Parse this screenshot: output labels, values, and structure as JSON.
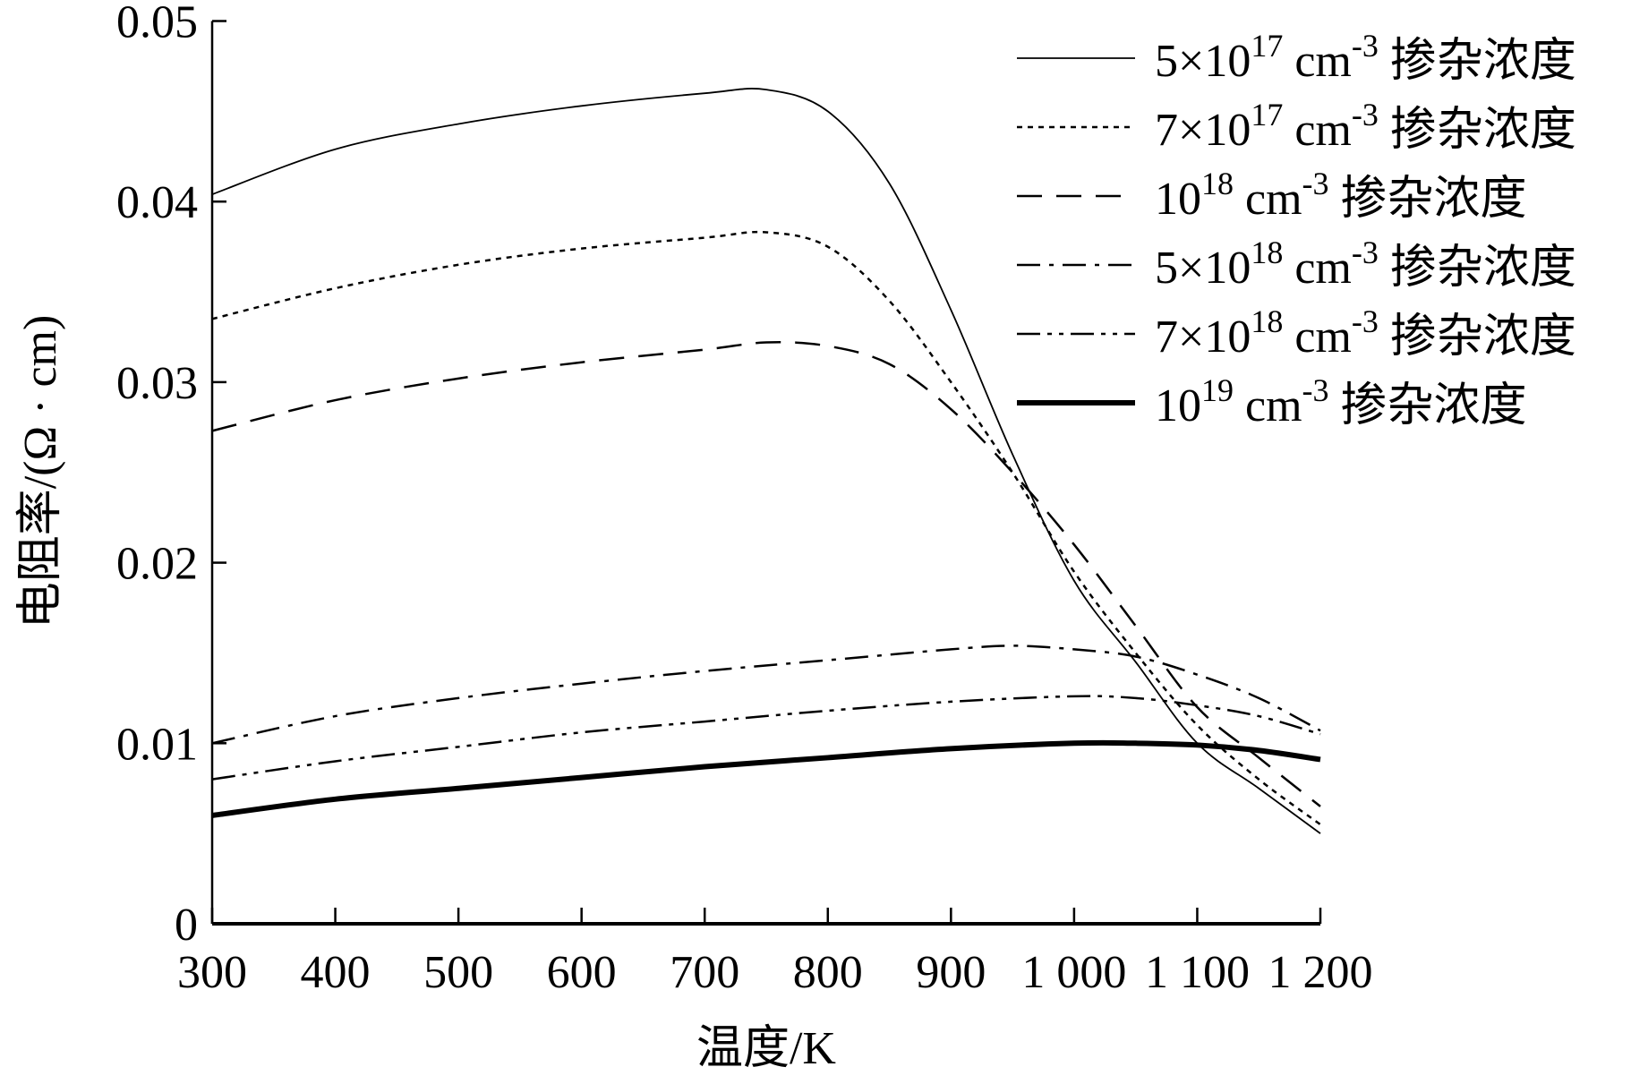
{
  "chart_data": {
    "type": "line",
    "title": "",
    "xlabel": "温度/K",
    "ylabel": "电阻率/(Ω · cm)",
    "xlim": [
      300,
      1200
    ],
    "ylim": [
      0,
      0.05
    ],
    "grid": false,
    "legend_position": "top-right",
    "xticks": [
      300,
      400,
      500,
      600,
      700,
      800,
      900,
      1000,
      1100,
      1200
    ],
    "xtick_labels": [
      "300",
      "400",
      "500",
      "600",
      "700",
      "800",
      "900",
      "1 000",
      "1 100",
      "1 200"
    ],
    "yticks": [
      0,
      0.01,
      0.02,
      0.03,
      0.04,
      0.05
    ],
    "ytick_labels": [
      "0",
      "0.01",
      "0.02",
      "0.03",
      "0.04",
      "0.05"
    ],
    "series": [
      {
        "name": "5×10^17 cm^-3 掺杂浓度",
        "label_base": "5×10",
        "label_exp": "17",
        "style": "solid",
        "x": [
          300,
          400,
          500,
          600,
          700,
          750,
          800,
          850,
          900,
          950,
          1000,
          1050,
          1100,
          1150,
          1200
        ],
        "y": [
          0.0404,
          0.0429,
          0.0443,
          0.0453,
          0.046,
          0.0462,
          0.045,
          0.041,
          0.034,
          0.026,
          0.019,
          0.0145,
          0.01,
          0.0075,
          0.005
        ]
      },
      {
        "name": "7×10^17 cm^-3 掺杂浓度",
        "label_base": "7×10",
        "label_exp": "17",
        "style": "dotted",
        "x": [
          300,
          400,
          500,
          600,
          700,
          750,
          800,
          850,
          900,
          950,
          1000,
          1050,
          1100,
          1150,
          1200
        ],
        "y": [
          0.0335,
          0.0352,
          0.0365,
          0.0374,
          0.038,
          0.0383,
          0.0375,
          0.0345,
          0.03,
          0.025,
          0.0195,
          0.015,
          0.011,
          0.008,
          0.0055
        ]
      },
      {
        "name": "10^18 cm^-3 掺杂浓度",
        "label_base": "10",
        "label_exp": "18",
        "style": "dashed",
        "x": [
          300,
          400,
          500,
          600,
          700,
          750,
          800,
          850,
          900,
          950,
          1000,
          1050,
          1100,
          1150,
          1200
        ],
        "y": [
          0.0273,
          0.029,
          0.0302,
          0.0311,
          0.0318,
          0.0322,
          0.032,
          0.031,
          0.0285,
          0.025,
          0.021,
          0.0165,
          0.012,
          0.0092,
          0.0065
        ]
      },
      {
        "name": "5×10^18 cm^-3 掺杂浓度",
        "label_base": "5×10",
        "label_exp": "18",
        "style": "dash-dot",
        "x": [
          300,
          400,
          500,
          600,
          700,
          800,
          900,
          950,
          1000,
          1050,
          1100,
          1150,
          1200
        ],
        "y": [
          0.01,
          0.0115,
          0.0125,
          0.0133,
          0.014,
          0.0146,
          0.0152,
          0.0154,
          0.0152,
          0.0148,
          0.0138,
          0.0125,
          0.0107
        ]
      },
      {
        "name": "7×10^18 cm^-3 掺杂浓度",
        "label_base": "7×10",
        "label_exp": "18",
        "style": "dash-dot-dot",
        "x": [
          300,
          400,
          500,
          600,
          700,
          800,
          900,
          1000,
          1050,
          1100,
          1150,
          1200
        ],
        "y": [
          0.008,
          0.009,
          0.0098,
          0.0106,
          0.0112,
          0.0118,
          0.0123,
          0.0126,
          0.0125,
          0.0121,
          0.0115,
          0.0105
        ]
      },
      {
        "name": "10^19 cm^-3 掺杂浓度",
        "label_base": "10",
        "label_exp": "19",
        "style": "thick",
        "x": [
          300,
          400,
          500,
          600,
          700,
          800,
          900,
          1000,
          1050,
          1100,
          1150,
          1200
        ],
        "y": [
          0.006,
          0.0069,
          0.0075,
          0.0081,
          0.0087,
          0.0092,
          0.0097,
          0.01,
          0.01,
          0.0099,
          0.0096,
          0.0091
        ]
      }
    ],
    "legend_unit": "cm",
    "legend_unit_exp": "-3",
    "legend_suffix": "掺杂浓度"
  }
}
